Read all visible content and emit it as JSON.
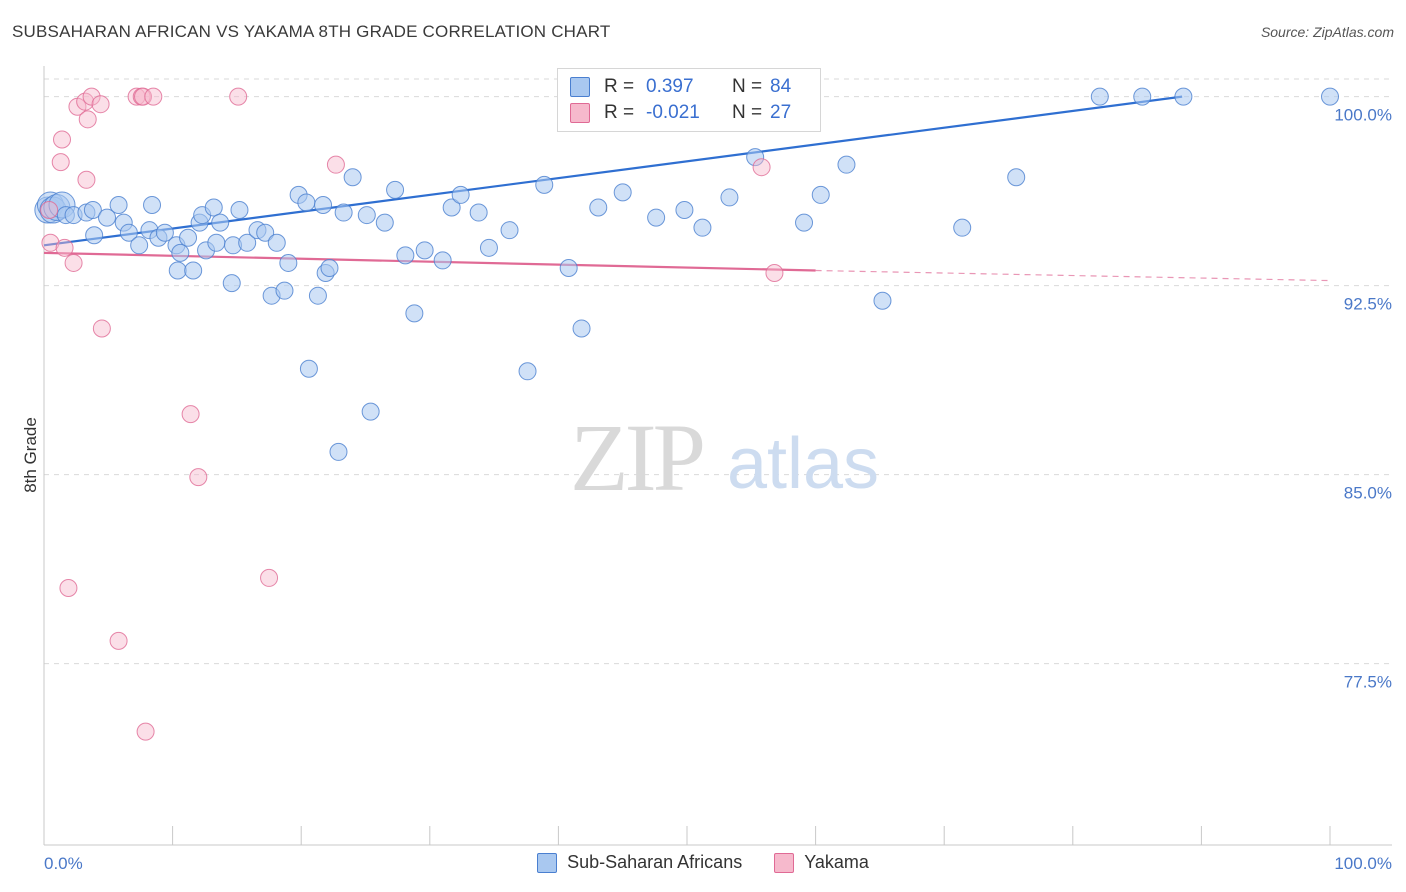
{
  "title": "SUBSAHARAN AFRICAN VS YAKAMA 8TH GRADE CORRELATION CHART",
  "source": "Source: ZipAtlas.com",
  "watermark": {
    "zip": "ZIP",
    "atlas": "atlas"
  },
  "colors": {
    "blue": "#4a7fd0",
    "blue_fill": "#a9c8f0",
    "pink": "#e06a95",
    "pink_fill": "#f6b9cc",
    "grid": "#d9d9d9",
    "tick_text": "#4a78c8"
  },
  "legend": {
    "rows": [
      {
        "r_label": "R =",
        "r_value": "0.397",
        "n_label": "N =",
        "n_value": "84",
        "series": "blue"
      },
      {
        "r_label": "R =",
        "r_value": "-0.021",
        "n_label": "N =",
        "n_value": "27",
        "series": "pink"
      }
    ]
  },
  "bottom_legend": [
    {
      "label": "Sub-Saharan Africans",
      "series": "blue"
    },
    {
      "label": "Yakama",
      "series": "pink"
    }
  ],
  "chart_data": {
    "type": "scatter",
    "title": "SUBSAHARAN AFRICAN VS YAKAMA 8TH GRADE CORRELATION CHART",
    "xlabel": "",
    "ylabel": "8th Grade",
    "xlim": [
      0,
      100
    ],
    "ylim": [
      70.3,
      100.7
    ],
    "x_tick_labels": [
      "0.0%",
      "100.0%"
    ],
    "y_ticks": [
      {
        "value": 100.0,
        "label": "100.0%"
      },
      {
        "value": 92.5,
        "label": "92.5%"
      },
      {
        "value": 85.0,
        "label": "85.0%"
      },
      {
        "value": 77.5,
        "label": "77.5%"
      }
    ],
    "grid": true,
    "series": [
      {
        "name": "Sub-Saharan Africans",
        "color": "blue",
        "trend": {
          "x0": 0,
          "y0": 94.1,
          "x1": 88.5,
          "y1": 100.0,
          "dashed_to": null
        },
        "points": [
          [
            0.3,
            95.5
          ],
          [
            0.5,
            95.7
          ],
          [
            0.7,
            95.5
          ],
          [
            1.0,
            95.6
          ],
          [
            1.4,
            95.7
          ],
          [
            1.7,
            95.3
          ],
          [
            2.3,
            95.3
          ],
          [
            3.3,
            95.4
          ],
          [
            3.8,
            95.5
          ],
          [
            3.9,
            94.5
          ],
          [
            4.9,
            95.2
          ],
          [
            5.8,
            95.7
          ],
          [
            6.2,
            95.0
          ],
          [
            6.6,
            94.6
          ],
          [
            7.4,
            94.1
          ],
          [
            8.2,
            94.7
          ],
          [
            8.4,
            95.7
          ],
          [
            8.9,
            94.4
          ],
          [
            9.4,
            94.6
          ],
          [
            10.3,
            94.1
          ],
          [
            10.4,
            93.1
          ],
          [
            10.6,
            93.8
          ],
          [
            11.2,
            94.4
          ],
          [
            11.6,
            93.1
          ],
          [
            12.1,
            95.0
          ],
          [
            12.3,
            95.3
          ],
          [
            12.6,
            93.9
          ],
          [
            13.2,
            95.6
          ],
          [
            13.4,
            94.2
          ],
          [
            13.7,
            95.0
          ],
          [
            14.6,
            92.6
          ],
          [
            14.7,
            94.1
          ],
          [
            15.2,
            95.5
          ],
          [
            15.8,
            94.2
          ],
          [
            16.6,
            94.7
          ],
          [
            17.2,
            94.6
          ],
          [
            17.7,
            92.1
          ],
          [
            18.1,
            94.2
          ],
          [
            18.7,
            92.3
          ],
          [
            19.0,
            93.4
          ],
          [
            19.8,
            96.1
          ],
          [
            20.4,
            95.8
          ],
          [
            20.6,
            89.2
          ],
          [
            21.3,
            92.1
          ],
          [
            21.7,
            95.7
          ],
          [
            21.9,
            93.0
          ],
          [
            22.2,
            93.2
          ],
          [
            22.9,
            85.9
          ],
          [
            23.3,
            95.4
          ],
          [
            24.0,
            96.8
          ],
          [
            25.1,
            95.3
          ],
          [
            25.4,
            87.5
          ],
          [
            26.5,
            95.0
          ],
          [
            27.3,
            96.3
          ],
          [
            28.1,
            93.7
          ],
          [
            28.8,
            91.4
          ],
          [
            29.6,
            93.9
          ],
          [
            31.0,
            93.5
          ],
          [
            31.7,
            95.6
          ],
          [
            32.4,
            96.1
          ],
          [
            33.8,
            95.4
          ],
          [
            34.6,
            94.0
          ],
          [
            36.2,
            94.7
          ],
          [
            37.6,
            89.1
          ],
          [
            38.9,
            96.5
          ],
          [
            40.8,
            93.2
          ],
          [
            41.8,
            90.8
          ],
          [
            43.1,
            95.6
          ],
          [
            45.0,
            96.2
          ],
          [
            47.6,
            95.2
          ],
          [
            49.8,
            95.5
          ],
          [
            51.2,
            94.8
          ],
          [
            53.3,
            96.0
          ],
          [
            55.3,
            97.6
          ],
          [
            59.1,
            95.0
          ],
          [
            60.4,
            96.1
          ],
          [
            62.4,
            97.3
          ],
          [
            65.2,
            91.9
          ],
          [
            71.4,
            94.8
          ],
          [
            75.6,
            96.8
          ],
          [
            82.1,
            100.0
          ],
          [
            85.4,
            100.0
          ],
          [
            88.6,
            100.0
          ],
          [
            100.0,
            100.0
          ]
        ]
      },
      {
        "name": "Yakama",
        "color": "pink",
        "trend": {
          "x0": 0,
          "y0": 93.8,
          "x1": 60.0,
          "y1": 93.1,
          "dashed_to": {
            "x": 100,
            "y": 92.7
          }
        },
        "points": [
          [
            0.4,
            95.5
          ],
          [
            0.5,
            94.2
          ],
          [
            1.3,
            97.4
          ],
          [
            1.4,
            98.3
          ],
          [
            1.6,
            94.0
          ],
          [
            1.9,
            80.5
          ],
          [
            2.3,
            93.4
          ],
          [
            2.6,
            99.6
          ],
          [
            3.2,
            99.8
          ],
          [
            3.3,
            96.7
          ],
          [
            3.4,
            99.1
          ],
          [
            3.7,
            100.0
          ],
          [
            4.4,
            99.7
          ],
          [
            4.5,
            90.8
          ],
          [
            5.8,
            78.4
          ],
          [
            7.2,
            100.0
          ],
          [
            7.6,
            100.0
          ],
          [
            7.7,
            100.0
          ],
          [
            7.9,
            74.8
          ],
          [
            8.5,
            100.0
          ],
          [
            11.4,
            87.4
          ],
          [
            12.0,
            84.9
          ],
          [
            15.1,
            100.0
          ],
          [
            17.5,
            80.9
          ],
          [
            22.7,
            97.3
          ],
          [
            55.8,
            97.2
          ],
          [
            56.8,
            93.0
          ]
        ]
      }
    ]
  }
}
